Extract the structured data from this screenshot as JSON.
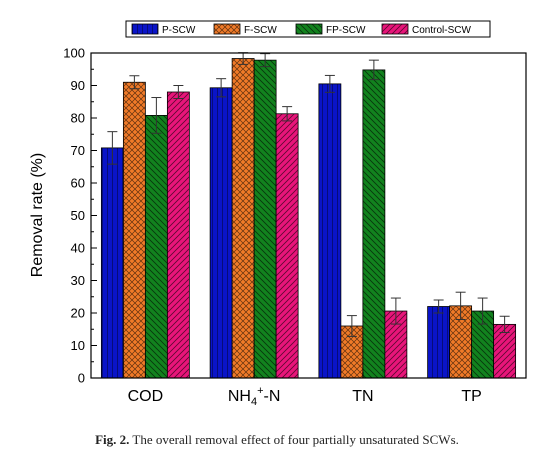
{
  "figure": {
    "caption_label": "Fig. 2.",
    "caption_text": " The overall removal effect of four partially unsaturated SCWs."
  },
  "chart_data": {
    "type": "bar",
    "title": "",
    "xlabel": "",
    "ylabel": "Removal rate (%)",
    "ylim": [
      0,
      100
    ],
    "yticks": [
      0,
      10,
      20,
      30,
      40,
      50,
      60,
      70,
      80,
      90,
      100
    ],
    "categories": [
      "COD",
      "NH4+-N",
      "TN",
      "TP"
    ],
    "legend_position": "top",
    "grid": false,
    "series": [
      {
        "name": "P-SCW",
        "color": "#0a14c8",
        "pattern": "vertical-lines",
        "values": [
          70.8,
          89.3,
          90.5,
          22.0
        ],
        "errors": [
          5.0,
          2.8,
          2.6,
          2.0
        ]
      },
      {
        "name": "F-SCW",
        "color": "#f07a28",
        "pattern": "crosshatch",
        "values": [
          91.0,
          98.3,
          16.0,
          22.2
        ],
        "errors": [
          2.0,
          1.8,
          3.2,
          4.2
        ]
      },
      {
        "name": "FP-SCW",
        "color": "#12821e",
        "pattern": "backslash",
        "values": [
          80.8,
          97.8,
          94.8,
          20.6
        ],
        "errors": [
          5.5,
          2.0,
          3.0,
          4.0
        ]
      },
      {
        "name": "Control-SCW",
        "color": "#e8157a",
        "pattern": "slash",
        "values": [
          88.0,
          81.3,
          20.6,
          16.5
        ],
        "errors": [
          2.0,
          2.2,
          4.0,
          2.5
        ]
      }
    ]
  }
}
